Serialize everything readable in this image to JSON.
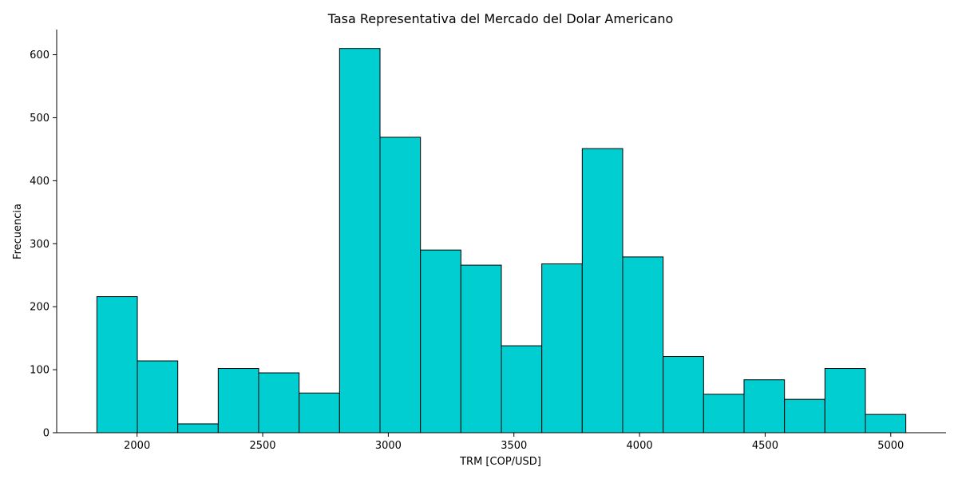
{
  "chart_data": {
    "type": "bar",
    "title": "Tasa Representativa del Mercado del Dolar Americano",
    "xlabel": "TRM [COP/USD]",
    "ylabel": "Frecuencia",
    "bin_edges": [
      1840,
      2001,
      2162,
      2323,
      2484,
      2645,
      2806,
      2967,
      3128,
      3289,
      3450,
      3611,
      3772,
      3933,
      4094,
      4255,
      4416,
      4577,
      4738,
      4899,
      5060
    ],
    "values": [
      216,
      114,
      14,
      102,
      95,
      63,
      610,
      469,
      290,
      266,
      138,
      268,
      451,
      279,
      121,
      61,
      84,
      53,
      102,
      29
    ],
    "xlim": [
      1680,
      5220
    ],
    "ylim": [
      0,
      640
    ],
    "x_ticks": [
      2000,
      2500,
      3000,
      3500,
      4000,
      4500,
      5000
    ],
    "y_ticks": [
      0,
      100,
      200,
      300,
      400,
      500,
      600
    ],
    "grid": false,
    "bar_color": "#00ced1",
    "edge_color": "#000000"
  }
}
